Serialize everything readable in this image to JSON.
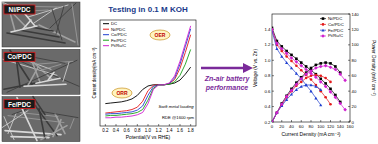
{
  "sem_labels": [
    "Ni/PDC",
    "Co/PDC",
    "Fe/PDC"
  ],
  "arrow_label": "Zn-air battery performance",
  "chart_data": [
    {
      "type": "line",
      "title": "Testing in 0.1 M KOH",
      "x_label": "Potential(V vs RHE)",
      "y_label": "Current density(mA cm⁻²)",
      "x": [
        0.2,
        0.3,
        0.4,
        0.5,
        0.6,
        0.7,
        0.8,
        0.9,
        1.0,
        1.1,
        1.2,
        1.3,
        1.4,
        1.5,
        1.6,
        1.7,
        1.8
      ],
      "series": [
        {
          "name": "DC",
          "color": "#000000",
          "values": [
            -3.2,
            -3.1,
            -3.0,
            -2.9,
            -2.7,
            -2.4,
            -1.8,
            -0.8,
            -0.2,
            0,
            0,
            0,
            0.1,
            0.3,
            0.8,
            1.8,
            3.0
          ]
        },
        {
          "name": "Ni/PDC",
          "color": "#e41a1c",
          "values": [
            -4.8,
            -4.7,
            -4.6,
            -4.5,
            -4.4,
            -4.2,
            -3.8,
            -2.8,
            -1.0,
            -0.1,
            0,
            0,
            0.2,
            0.9,
            2.8,
            5.5,
            8.5
          ]
        },
        {
          "name": "Co/PDC",
          "color": "#1f3fd0",
          "values": [
            -5.0,
            -4.9,
            -4.9,
            -4.8,
            -4.7,
            -4.6,
            -4.3,
            -3.6,
            -1.8,
            -0.3,
            0,
            0,
            0.2,
            1.2,
            3.5,
            6.5,
            9.5
          ]
        },
        {
          "name": "Fe/PDC",
          "color": "#18a018",
          "values": [
            -5.3,
            -5.2,
            -5.2,
            -5.1,
            -5.0,
            -4.9,
            -4.7,
            -4.2,
            -2.6,
            -0.6,
            0,
            0,
            0.1,
            0.5,
            1.6,
            3.5,
            6.0
          ]
        },
        {
          "name": "Pt/Ru/C",
          "color": "#d020d0",
          "values": [
            -5.6,
            -5.6,
            -5.5,
            -5.5,
            -5.4,
            -5.3,
            -5.1,
            -4.7,
            -3.2,
            -0.8,
            0,
            0,
            0.3,
            1.5,
            4.0,
            7.0,
            10.0
          ]
        }
      ],
      "xlim": [
        0.1,
        1.9
      ],
      "xticks": [
        0.2,
        0.4,
        0.6,
        0.8,
        {
          "value": 1,
          "label": "1.0"
        },
        1.2,
        1.4,
        1.6,
        1.8
      ],
      "ylim": [
        -7,
        11
      ],
      "tick_labels": "x",
      "legend": "upper left",
      "annotations": [
        "ORR",
        "OER",
        "Swift metal loading",
        "RDE @1600 rpm"
      ]
    },
    {
      "type": "line",
      "x_label": "Current Density (mA cm⁻²)",
      "y_label": "Voltage (V vs. Zn)",
      "y2_label": "Power Density (mW cm⁻²)",
      "x": [
        0,
        10,
        20,
        30,
        40,
        50,
        60,
        70,
        80,
        90,
        100,
        110,
        120,
        130,
        140,
        150
      ],
      "series": [
        {
          "name": "Ni/PDC",
          "color": "#000000",
          "marker": "square",
          "values": [
            1.42,
            1.25,
            1.18,
            1.12,
            1.07,
            1.02,
            0.97,
            0.92,
            0.87,
            0.82,
            0.76,
            0.7,
            0.63,
            0.55,
            0.46,
            null
          ],
          "power": [
            0,
            12,
            24,
            34,
            43,
            51,
            58,
            64,
            70,
            74,
            76,
            77,
            76,
            72,
            64,
            null
          ]
        },
        {
          "name": "Co/PDC",
          "color": "#e41a1c",
          "marker": "circle",
          "values": [
            1.4,
            1.2,
            1.12,
            1.05,
            0.99,
            0.93,
            0.87,
            0.81,
            0.75,
            0.68,
            0.6,
            0.52,
            0.43,
            null,
            null,
            null
          ],
          "power": [
            0,
            12,
            22,
            32,
            40,
            47,
            52,
            57,
            60,
            61,
            60,
            57,
            52,
            null,
            null,
            null
          ]
        },
        {
          "name": "Fe/PDC",
          "color": "#1f3fd0",
          "marker": "triangle",
          "values": [
            1.38,
            1.15,
            1.05,
            0.97,
            0.9,
            0.83,
            0.76,
            0.68,
            0.6,
            0.51,
            0.42,
            null,
            null,
            null,
            null,
            null
          ],
          "power": [
            0,
            12,
            21,
            29,
            36,
            42,
            46,
            48,
            48,
            46,
            42,
            null,
            null,
            null,
            null,
            null
          ]
        },
        {
          "name": "Pt/Ru/C",
          "color": "#d020d0",
          "marker": "diamond",
          "values": [
            1.4,
            1.22,
            1.15,
            1.09,
            1.03,
            0.98,
            0.93,
            0.88,
            0.83,
            0.78,
            0.72,
            0.66,
            0.59,
            0.52,
            0.44,
            0.36
          ],
          "power": [
            0,
            12,
            23,
            33,
            41,
            49,
            56,
            62,
            66,
            70,
            72,
            73,
            71,
            68,
            62,
            54
          ]
        }
      ],
      "xlim": [
        0,
        160
      ],
      "xticks": [
        0,
        20,
        40,
        60,
        80,
        100,
        120,
        140,
        160
      ],
      "ylim": [
        0.2,
        1.6
      ],
      "yticks": [
        0.2,
        0.4,
        0.6,
        0.8,
        {
          "value": 1,
          "label": "1.0"
        },
        1.2,
        1.4
      ],
      "y2lim": [
        0,
        140
      ],
      "y2ticks": [
        0,
        20,
        40,
        60,
        80,
        100,
        120,
        140
      ],
      "legend": "upper right"
    }
  ]
}
